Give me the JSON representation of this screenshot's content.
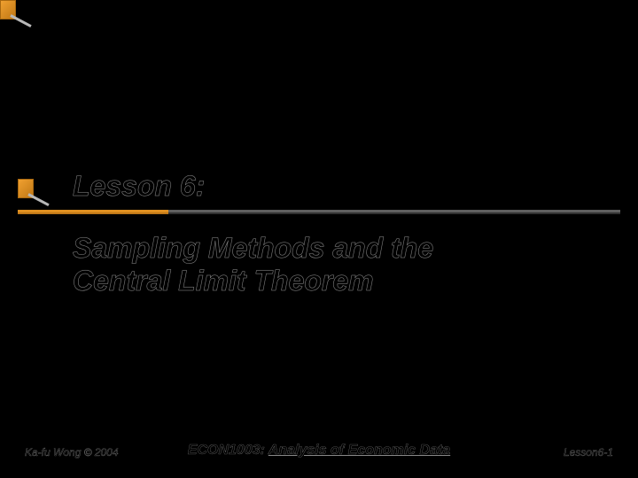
{
  "title": {
    "lesson_label": "Lesson 6:",
    "lesson_fontsize": "32px",
    "subtitle_line1": "Sampling Methods and the",
    "subtitle_line2": "Central Limit Theorem",
    "subtitle_fontsize": "32px"
  },
  "footer": {
    "author": "Ka-fu Wong © 2004",
    "author_fontsize": "12px",
    "course_code": "ECON1003: ",
    "course_name": "Analysis of Economic Data",
    "course_fontsize": "16px",
    "page_ref": "Lesson6-1",
    "page_ref_fontsize": "12px"
  },
  "colors": {
    "background": "#000000",
    "accent_orange": "#e09020",
    "accent_orange_dark": "#c07818",
    "line_gray": "#606060",
    "line_gray_dark": "#303030",
    "text_outline": "#888888"
  }
}
